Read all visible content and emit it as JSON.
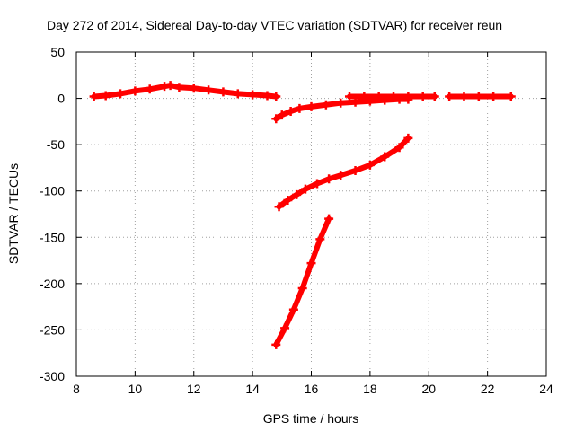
{
  "chart_data": {
    "type": "scatter",
    "title": "Day 272 of 2014, Sidereal Day-to-day VTEC variation (SDTVAR) for receiver reun",
    "xlabel": "GPS time / hours",
    "ylabel": "SDTVAR / TECUs",
    "xlim": [
      8,
      24
    ],
    "ylim": [
      -300,
      50
    ],
    "xticks": [
      "8",
      "10",
      "12",
      "14",
      "16",
      "18",
      "20",
      "22",
      "24"
    ],
    "yticks": [
      "50",
      "0",
      "-50",
      "-100",
      "-150",
      "-200",
      "-250",
      "-300"
    ],
    "grid": true,
    "legend": "none",
    "color": "#ff0000",
    "series": [
      {
        "points": [
          [
            8.6,
            2
          ],
          [
            9.0,
            3
          ],
          [
            9.5,
            5
          ],
          [
            10.0,
            8
          ],
          [
            10.5,
            10
          ],
          [
            11.0,
            13
          ],
          [
            11.2,
            14
          ],
          [
            11.5,
            12
          ],
          [
            12.0,
            11
          ],
          [
            12.5,
            9
          ],
          [
            13.0,
            7
          ],
          [
            13.5,
            5
          ],
          [
            14.0,
            4
          ],
          [
            14.5,
            3
          ],
          [
            14.8,
            2
          ]
        ]
      },
      {
        "points": [
          [
            14.8,
            -22
          ],
          [
            15.0,
            -18
          ],
          [
            15.3,
            -14
          ],
          [
            15.6,
            -11
          ],
          [
            16.0,
            -9
          ],
          [
            16.5,
            -7
          ],
          [
            17.0,
            -5
          ],
          [
            17.5,
            -4
          ],
          [
            18.0,
            -3
          ],
          [
            18.5,
            -2
          ],
          [
            19.0,
            -1
          ],
          [
            19.3,
            -1
          ]
        ]
      },
      {
        "points": [
          [
            17.3,
            2
          ],
          [
            17.8,
            2
          ],
          [
            18.3,
            2
          ],
          [
            18.8,
            2
          ],
          [
            19.3,
            2
          ],
          [
            19.8,
            2
          ],
          [
            20.2,
            2
          ]
        ]
      },
      {
        "points": [
          [
            20.7,
            2
          ],
          [
            21.2,
            2
          ],
          [
            21.7,
            2
          ],
          [
            22.2,
            2
          ],
          [
            22.8,
            2
          ]
        ]
      },
      {
        "points": [
          [
            14.9,
            -117
          ],
          [
            15.2,
            -110
          ],
          [
            15.5,
            -104
          ],
          [
            15.8,
            -98
          ],
          [
            16.2,
            -92
          ],
          [
            16.6,
            -87
          ],
          [
            17.0,
            -83
          ],
          [
            17.5,
            -78
          ],
          [
            18.0,
            -72
          ],
          [
            18.5,
            -63
          ],
          [
            19.0,
            -53
          ],
          [
            19.3,
            -43
          ]
        ]
      },
      {
        "points": [
          [
            14.8,
            -266
          ],
          [
            15.1,
            -248
          ],
          [
            15.4,
            -228
          ],
          [
            15.7,
            -205
          ],
          [
            16.0,
            -178
          ],
          [
            16.3,
            -152
          ],
          [
            16.6,
            -130
          ]
        ]
      }
    ]
  }
}
